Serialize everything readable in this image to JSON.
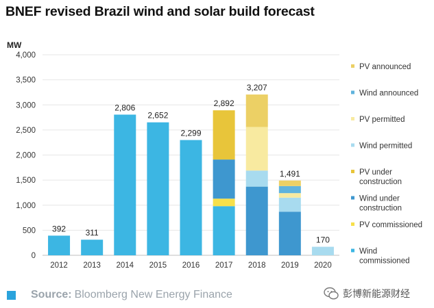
{
  "title": "BNEF revised Brazil wind and solar build forecast",
  "footer": {
    "source_label": "Source:",
    "source_text": "Bloomberg New Energy Finance",
    "watermark": "彭博新能源财经"
  },
  "chart_data": {
    "type": "bar",
    "stacked": true,
    "title": "BNEF revised Brazil wind and solar build forecast",
    "ylabel": "MW",
    "ylim": [
      0,
      4000
    ],
    "yticks": [
      0,
      500,
      1000,
      1500,
      2000,
      2500,
      3000,
      3500,
      4000
    ],
    "ytick_labels": [
      "0",
      "500",
      "1,000",
      "1,500",
      "2,000",
      "2,500",
      "3,000",
      "3,500",
      "4,000"
    ],
    "grid": true,
    "legend_position": "right",
    "categories": [
      "2012",
      "2013",
      "2014",
      "2015",
      "2016",
      "2017",
      "2018",
      "2019",
      "2020"
    ],
    "totals": [
      392,
      311,
      2806,
      2652,
      2299,
      2892,
      3207,
      1491,
      170
    ],
    "total_labels": [
      "392",
      "311",
      "2,806",
      "2,652",
      "2,299",
      "2,892",
      "3,207",
      "1,491",
      "170"
    ],
    "series": [
      {
        "name": "Wind commissioned",
        "color": "#3cb6e3",
        "values": [
          392,
          311,
          2806,
          2652,
          2299,
          980,
          0,
          0,
          0
        ]
      },
      {
        "name": "PV commissioned",
        "color": "#f7e04a",
        "values": [
          0,
          0,
          0,
          0,
          0,
          150,
          0,
          0,
          0
        ]
      },
      {
        "name": "Wind under construction",
        "color": "#3e97cf",
        "values": [
          0,
          0,
          0,
          0,
          0,
          780,
          1370,
          870,
          0
        ]
      },
      {
        "name": "PV under construction",
        "color": "#e8c53a",
        "values": [
          0,
          0,
          0,
          0,
          0,
          982,
          0,
          0,
          0
        ]
      },
      {
        "name": "Wind permitted",
        "color": "#a8dbef",
        "values": [
          0,
          0,
          0,
          0,
          0,
          0,
          320,
          280,
          170
        ]
      },
      {
        "name": "PV permitted",
        "color": "#f8eaa0",
        "values": [
          0,
          0,
          0,
          0,
          0,
          0,
          870,
          90,
          0
        ]
      },
      {
        "name": "Wind announced",
        "color": "#5fb3dd",
        "values": [
          0,
          0,
          0,
          0,
          0,
          0,
          0,
          141,
          0
        ]
      },
      {
        "name": "PV announced",
        "color": "#ecd065",
        "values": [
          0,
          0,
          0,
          0,
          0,
          0,
          647,
          110,
          0
        ]
      }
    ],
    "legend": [
      {
        "label": "PV announced",
        "color": "#ecd065"
      },
      {
        "label": "Wind announced",
        "color": "#5fb3dd"
      },
      {
        "label": "PV permitted",
        "color": "#f8eaa0"
      },
      {
        "label": "Wind permitted",
        "color": "#a8dbef"
      },
      {
        "label": "PV under construction",
        "color": "#e8c53a"
      },
      {
        "label": "Wind under construction",
        "color": "#3e97cf"
      },
      {
        "label": "PV commissioned",
        "color": "#f7e04a"
      },
      {
        "label": "Wind commissioned",
        "color": "#3cb6e3"
      }
    ]
  }
}
